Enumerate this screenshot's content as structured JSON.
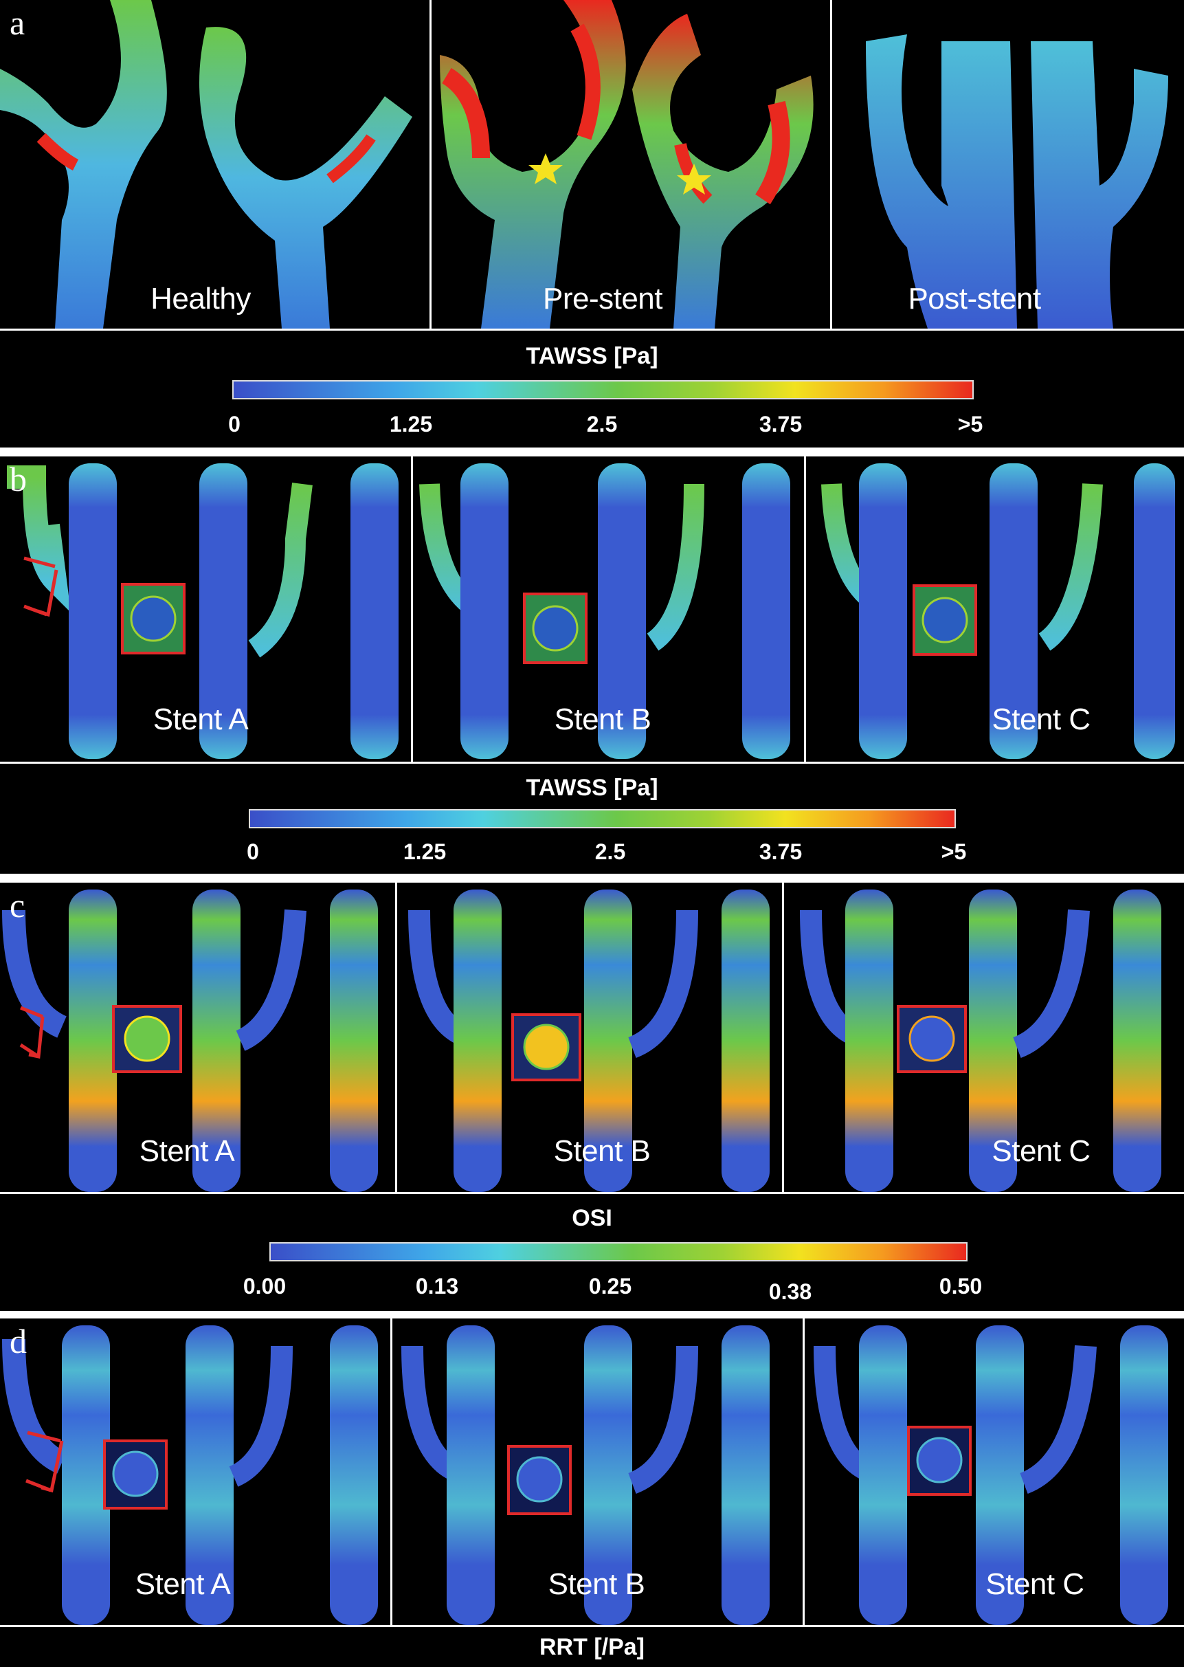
{
  "colors": {
    "background": "#000000",
    "vessel_low": "#3a5bd0",
    "vessel_mid": "#6cc84a",
    "vessel_high": "#e9291f",
    "accent_red_box": "#e02a2a",
    "star": "#f5e21f"
  },
  "panels": [
    {
      "letter": "a",
      "labels": [
        "Healthy",
        "Pre-stent",
        "Post-stent"
      ],
      "legend": {
        "title": "TAWSS [Pa]",
        "ticks": [
          "0",
          "1.25",
          "2.5",
          "3.75",
          ">5"
        ]
      }
    },
    {
      "letter": "b",
      "labels": [
        "Stent A",
        "Stent B",
        "Stent C"
      ],
      "legend": {
        "title": "TAWSS [Pa]",
        "ticks": [
          "0",
          "1.25",
          "2.5",
          "3.75",
          ">5"
        ]
      }
    },
    {
      "letter": "c",
      "labels": [
        "Stent A",
        "Stent B",
        "Stent C"
      ],
      "legend": {
        "title": "OSI",
        "ticks": [
          "0.00",
          "0.13",
          "0.25",
          "0.38",
          "0.50"
        ]
      }
    },
    {
      "letter": "d",
      "labels": [
        "Stent A",
        "Stent B",
        "Stent C"
      ],
      "legend": {
        "title": "RRT [/Pa]",
        "ticks": []
      }
    }
  ],
  "icons": {
    "star": "star-icon",
    "bracket": "red-bracket-arrow-icon",
    "inset": "stent-inset-icon"
  }
}
